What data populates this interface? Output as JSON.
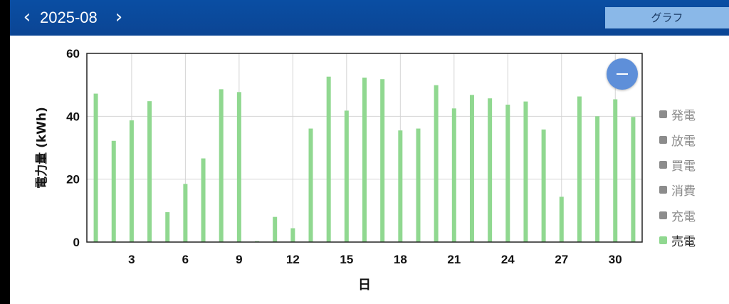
{
  "header": {
    "prev_icon": "‹",
    "next_icon": "›",
    "month": "2025-08",
    "tab_label": "グラフ"
  },
  "zoom_icon": "minus-icon",
  "colors": {
    "header": "#0b4a9e",
    "bar": "#90d890",
    "legend_inactive": "#8c8c8c",
    "legend_inactive_text": "#8a8a8a",
    "legend_active_text": "#222222",
    "zoom_button": "#5e8fd9"
  },
  "legend": [
    {
      "label": "発電",
      "active": false
    },
    {
      "label": "放電",
      "active": false
    },
    {
      "label": "買電",
      "active": false
    },
    {
      "label": "消費",
      "active": false
    },
    {
      "label": "充電",
      "active": false
    },
    {
      "label": "売電",
      "active": true
    }
  ],
  "chart_data": {
    "type": "bar",
    "xlabel": "日",
    "ylabel": "電力量 (kWh)",
    "ylim": [
      0,
      60
    ],
    "yticks": [
      0,
      20,
      40,
      60
    ],
    "xticks": [
      3,
      6,
      9,
      12,
      15,
      18,
      21,
      24,
      27,
      30
    ],
    "x": [
      1,
      2,
      3,
      4,
      5,
      6,
      7,
      8,
      9,
      10,
      11,
      12,
      13,
      14,
      15,
      16,
      17,
      18,
      19,
      20,
      21,
      22,
      23,
      24,
      25,
      26,
      27,
      28,
      29,
      30,
      31
    ],
    "series": [
      {
        "name": "売電",
        "values": [
          47.2,
          32.2,
          38.7,
          44.8,
          9.5,
          18.5,
          26.6,
          48.6,
          47.7,
          0.3,
          8.0,
          4.4,
          36.1,
          52.6,
          41.8,
          52.3,
          51.8,
          35.5,
          36.1,
          49.9,
          42.5,
          46.8,
          45.7,
          43.7,
          44.7,
          35.8,
          14.4,
          46.3,
          40.0,
          45.4,
          39.8
        ]
      }
    ],
    "grid": true
  }
}
